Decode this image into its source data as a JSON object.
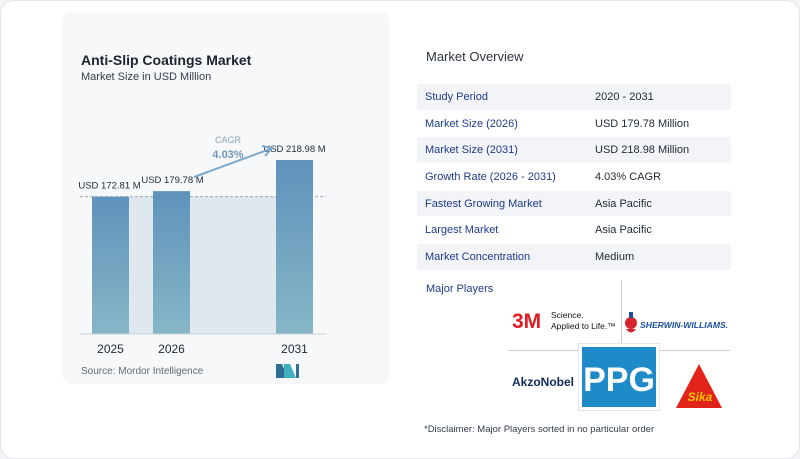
{
  "chart_data": {
    "type": "bar",
    "title": "Anti-Slip Coatings Market",
    "subtitle": "Market Size in USD Million",
    "categories": [
      "2025",
      "2026",
      "2031"
    ],
    "values": [
      172.81,
      179.78,
      218.98
    ],
    "data_labels": [
      "USD 172.81 M",
      "USD 179.78 M",
      "USD 218.98 M"
    ],
    "cagr_label": "CAGR",
    "cagr_value": "4.03%",
    "xlabel": "",
    "ylabel": "",
    "colors": {
      "bar": "#5b8fb8",
      "bar_top": "#5f93bc",
      "bar_bottom": "#86b6c6",
      "band": "#dfe7ef",
      "arrow": "#7faacb",
      "cagr_label": "#8aa2b7",
      "cagr_value": "#6f95b5"
    }
  },
  "source": "Source:  Mordor Intelligence",
  "overview": {
    "title": "Market Overview",
    "rows": [
      {
        "label": "Study Period",
        "value": "2020 - 2031"
      },
      {
        "label": "Market Size (2026)",
        "value": "USD 179.78 Million"
      },
      {
        "label": "Market Size (2031)",
        "value": "USD 218.98 Million"
      },
      {
        "label": "Growth Rate (2026 - 2031)",
        "value": "4.03% CAGR"
      },
      {
        "label": "Fastest Growing Market",
        "value": "Asia Pacific"
      },
      {
        "label": "Largest Market",
        "value": "Asia Pacific"
      },
      {
        "label": "Market Concentration",
        "value": "Medium"
      }
    ]
  },
  "players": {
    "label": "Major Players",
    "logos": {
      "threem": {
        "mark": "3M",
        "line1": "Science.",
        "line2": "Applied to Life.™"
      },
      "sherwin": {
        "text": "SHERWIN-WILLIAMS."
      },
      "akzo": {
        "text": "AkzoNobel"
      },
      "ppg": {
        "text": "PPG"
      },
      "sika": {
        "text": "Sika"
      }
    }
  },
  "disclaimer": "*Disclaimer: Major Players sorted in no particular order"
}
